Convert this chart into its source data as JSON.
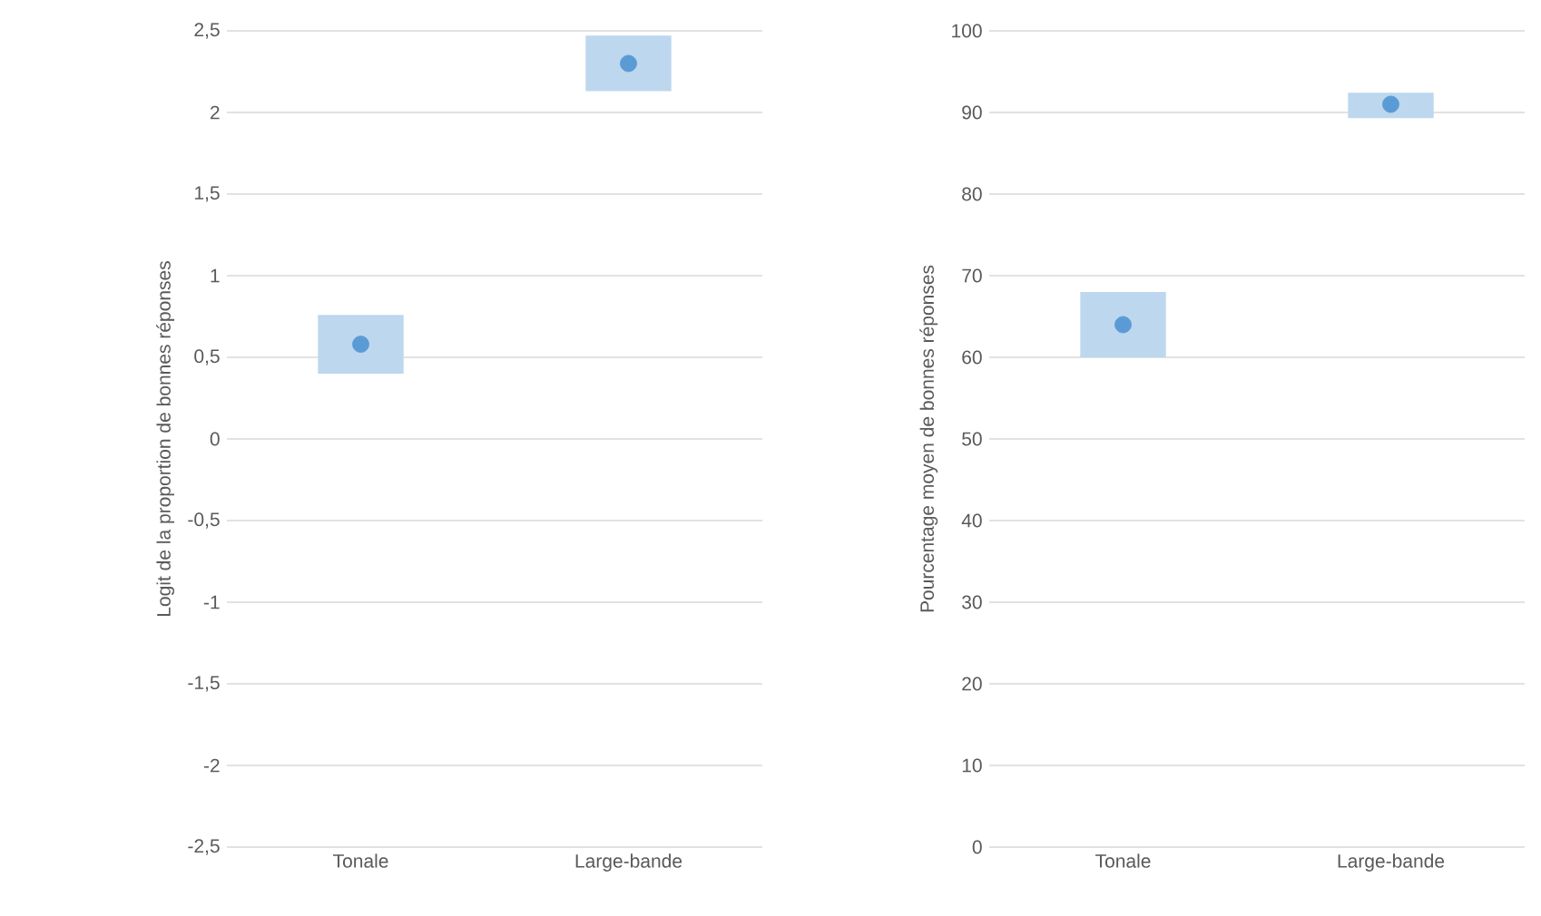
{
  "chart_data": [
    {
      "type": "bar",
      "ylabel": "Logit de la proportion de bonnes réponses",
      "categories": [
        "Tonale",
        "Large-bande"
      ],
      "grid": "y",
      "ylim": [
        -2.5,
        2.5
      ],
      "yticks": [
        {
          "value": -2.5,
          "label": "-2,5"
        },
        -2,
        {
          "value": -1.5,
          "label": "-1,5"
        },
        -1,
        {
          "value": -0.5,
          "label": "-0,5"
        },
        0,
        {
          "value": 0.5,
          "label": "0,5"
        },
        1,
        {
          "value": 1.5,
          "label": "1,5"
        },
        2,
        {
          "value": 2.5,
          "label": "2,5"
        }
      ],
      "series": [
        {
          "color": "#bdd7ee",
          "base": [
            0.4,
            2.13
          ],
          "values": [
            0.36,
            0.34
          ]
        },
        {
          "type": "scatter",
          "color": "#5b9bd5",
          "values": [
            0.58,
            2.3
          ]
        }
      ]
    },
    {
      "type": "bar",
      "ylabel": "Pourcentage moyen de bonnes réponses",
      "categories": [
        "Tonale",
        "Large-bande"
      ],
      "grid": "y",
      "ylim": [
        0,
        100
      ],
      "yticks": [
        0,
        10,
        20,
        30,
        40,
        50,
        60,
        70,
        80,
        90,
        100
      ],
      "series": [
        {
          "color": "#bdd7ee",
          "base": [
            60,
            89.3
          ],
          "values": [
            8,
            3.1
          ]
        },
        {
          "type": "scatter",
          "color": "#5b9bd5",
          "values": [
            64.0,
            91.0
          ]
        }
      ]
    }
  ]
}
